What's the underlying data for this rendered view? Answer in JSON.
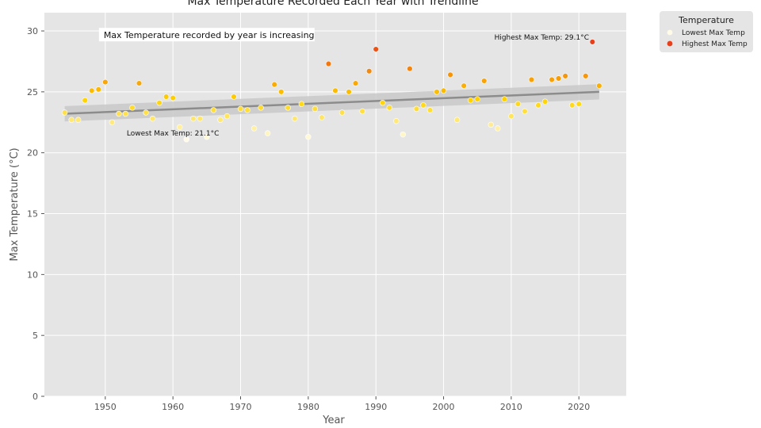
{
  "chart_data": {
    "type": "scatter",
    "title": "Max Temperature Recorded Each Year with Trendline",
    "xlabel": "Year",
    "ylabel": "Max Temperature (°C)",
    "xlim": [
      1941,
      2027
    ],
    "ylim": [
      0,
      31.5
    ],
    "xticks": [
      1950,
      1960,
      1970,
      1980,
      1990,
      2000,
      2010,
      2020
    ],
    "yticks": [
      0,
      5,
      10,
      15,
      20,
      25,
      30
    ],
    "grid": true,
    "colormap": {
      "low": "#fffbe6",
      "mid": "#ffd400",
      "high": "#e8401a",
      "min": 21.1,
      "max": 29.1
    },
    "legend": {
      "title": "Temperature",
      "placement": "outside-top-right",
      "entries": [
        {
          "label": "Lowest Max Temp",
          "color": "#fffbe6"
        },
        {
          "label": "Highest Max Temp",
          "color": "#e8401a"
        }
      ]
    },
    "trendline": {
      "x": [
        1944,
        2023
      ],
      "y": [
        23.2,
        25.0
      ],
      "band": 0.45,
      "color": "#8c8c8c"
    },
    "annotations": [
      {
        "text": "Max Temperature recorded by year is increasing",
        "x": 1950,
        "y": 29.6,
        "type": "note"
      },
      {
        "text": "Highest Max Temp: 29.1°C",
        "x": 2014.5,
        "y": 29.3,
        "type": "label"
      },
      {
        "text": "Lowest Max Temp: 21.1°C",
        "x": 1960,
        "y": 21.4,
        "type": "label"
      }
    ],
    "points": {
      "x": [
        1944,
        1945,
        1946,
        1947,
        1948,
        1949,
        1950,
        1951,
        1952,
        1953,
        1954,
        1955,
        1956,
        1957,
        1958,
        1959,
        1960,
        1961,
        1962,
        1963,
        1964,
        1965,
        1966,
        1967,
        1968,
        1969,
        1970,
        1971,
        1972,
        1973,
        1974,
        1975,
        1976,
        1977,
        1978,
        1979,
        1980,
        1981,
        1982,
        1983,
        1984,
        1985,
        1986,
        1987,
        1988,
        1989,
        1990,
        1991,
        1992,
        1993,
        1994,
        1995,
        1996,
        1997,
        1998,
        1999,
        2000,
        2001,
        2002,
        2003,
        2004,
        2005,
        2006,
        2007,
        2008,
        2009,
        2010,
        2011,
        2012,
        2013,
        2014,
        2015,
        2016,
        2017,
        2018,
        2019,
        2020,
        2021,
        2022,
        2023
      ],
      "y": [
        23.3,
        22.7,
        22.7,
        24.3,
        25.1,
        25.2,
        25.8,
        22.5,
        23.2,
        23.2,
        23.7,
        25.7,
        23.3,
        22.8,
        24.1,
        24.6,
        24.5,
        22.1,
        21.1,
        22.8,
        22.8,
        21.3,
        23.5,
        22.7,
        23.0,
        24.6,
        23.6,
        23.5,
        22.0,
        23.7,
        21.6,
        25.6,
        25.0,
        23.7,
        22.8,
        24.0,
        21.3,
        23.6,
        22.9,
        27.3,
        25.1,
        23.3,
        25.0,
        25.7,
        23.4,
        26.7,
        28.5,
        24.1,
        23.7,
        22.6,
        21.5,
        26.9,
        23.6,
        23.9,
        23.5,
        25.0,
        25.1,
        26.4,
        22.7,
        25.5,
        24.3,
        24.4,
        25.9,
        22.3,
        22.0,
        24.4,
        23.0,
        24.0,
        23.4,
        26.0,
        23.9,
        24.2,
        26.0,
        26.1,
        26.3,
        23.9,
        24.0,
        26.3,
        29.1,
        25.5
      ]
    }
  }
}
